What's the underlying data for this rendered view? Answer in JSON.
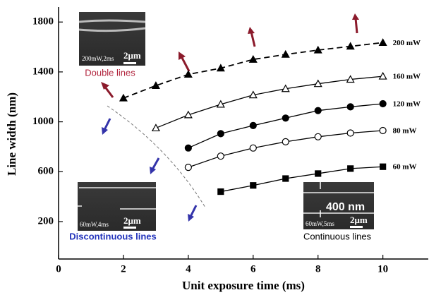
{
  "chart_data": {
    "type": "line",
    "xlabel": "Unit exposure time (ms)",
    "ylabel": "Line width (nm)",
    "xlim": [
      0,
      11.4
    ],
    "ylim": [
      -100,
      1920
    ],
    "xticks": [
      0,
      2,
      4,
      6,
      8,
      10
    ],
    "yticks": [
      200,
      600,
      1000,
      1400,
      1800
    ],
    "series": [
      {
        "name": "200 mW",
        "color": "#000000",
        "marker": "triangle-filled",
        "dashed": true,
        "x": [
          2,
          3,
          4,
          5,
          6,
          7,
          8,
          9,
          10
        ],
        "values": [
          1190,
          1290,
          1380,
          1430,
          1500,
          1540,
          1575,
          1605,
          1635
        ]
      },
      {
        "name": "160 mW",
        "color": "#000000",
        "marker": "triangle-open",
        "dashed": false,
        "x": [
          3,
          4,
          5,
          6,
          7,
          8,
          9,
          10
        ],
        "values": [
          950,
          1055,
          1140,
          1215,
          1265,
          1305,
          1340,
          1365
        ]
      },
      {
        "name": "120 mW",
        "color": "#000000",
        "marker": "circle-filled",
        "dashed": false,
        "x": [
          4,
          5,
          6,
          7,
          8,
          9,
          10
        ],
        "values": [
          790,
          905,
          970,
          1030,
          1090,
          1120,
          1145
        ]
      },
      {
        "name": "80 mW",
        "color": "#000000",
        "marker": "circle-open",
        "dashed": false,
        "x": [
          4,
          5,
          6,
          7,
          8,
          9,
          10
        ],
        "values": [
          635,
          725,
          790,
          840,
          880,
          910,
          930
        ]
      },
      {
        "name": "60 mW",
        "color": "#000000",
        "marker": "square-filled",
        "dashed": false,
        "x": [
          5,
          6,
          7,
          8,
          9,
          10
        ],
        "values": [
          440,
          490,
          545,
          585,
          625,
          640
        ]
      }
    ],
    "insets": [
      {
        "caption": "200mW,2ms",
        "scale": "2μm",
        "label": "Double lines"
      },
      {
        "caption": "60mW,4ms",
        "scale": "2μm",
        "label": "Discontinuous lines"
      },
      {
        "caption": "60mW,5ms",
        "scale": "2μm",
        "label": "Continuous lines",
        "marker": "400 nm"
      }
    ]
  }
}
